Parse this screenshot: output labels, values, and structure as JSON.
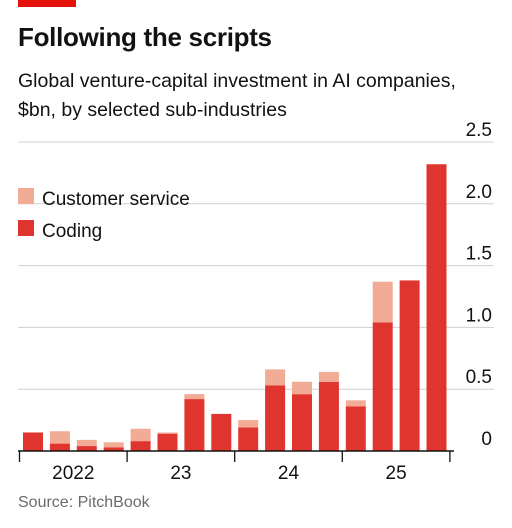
{
  "header": {
    "title": "Following the scripts",
    "subtitle": "Global venture-capital investment in AI companies, $bn, by selected sub-industries"
  },
  "source": "Source: PitchBook",
  "colors": {
    "accent": "#e3120b",
    "customer_service": "#f2ab95",
    "coding": "#e0352f",
    "grid": "#d0d0d0",
    "axis": "#121212"
  },
  "chart_data": {
    "type": "bar",
    "stacked": true,
    "title": "Following the scripts",
    "subtitle": "Global venture-capital investment in AI companies, $bn, by selected sub-industries",
    "categories": [
      "2022 Q1",
      "2022 Q2",
      "2022 Q3",
      "2022 Q4",
      "2023 Q1",
      "2023 Q2",
      "2023 Q3",
      "2023 Q4",
      "2024 Q1",
      "2024 Q2",
      "2024 Q3",
      "2024 Q4",
      "2025 Q1",
      "2025 Q2",
      "2025 Q3",
      "2025 Q4"
    ],
    "x_tick_labels": [
      "2022",
      "23",
      "24",
      "25"
    ],
    "series": [
      {
        "name": "Coding",
        "color": "#e0352f",
        "values": [
          0.15,
          0.06,
          0.04,
          0.03,
          0.08,
          0.14,
          0.42,
          0.3,
          0.19,
          0.53,
          0.46,
          0.56,
          0.36,
          1.04,
          1.38,
          2.32
        ]
      },
      {
        "name": "Customer service",
        "color": "#f2ab95",
        "values": [
          0.0,
          0.1,
          0.05,
          0.04,
          0.1,
          0.01,
          0.04,
          0.0,
          0.06,
          0.13,
          0.1,
          0.08,
          0.05,
          0.33,
          0.0,
          0.0
        ]
      }
    ],
    "legend": [
      "Customer service",
      "Coding"
    ],
    "legend_position": "top-left",
    "ylim": [
      0,
      2.5
    ],
    "yticks": [
      "0",
      "0.5",
      "1.0",
      "1.5",
      "2.0",
      "2.5"
    ],
    "y_axis_position": "right",
    "grid": true,
    "source": "Source: PitchBook"
  }
}
